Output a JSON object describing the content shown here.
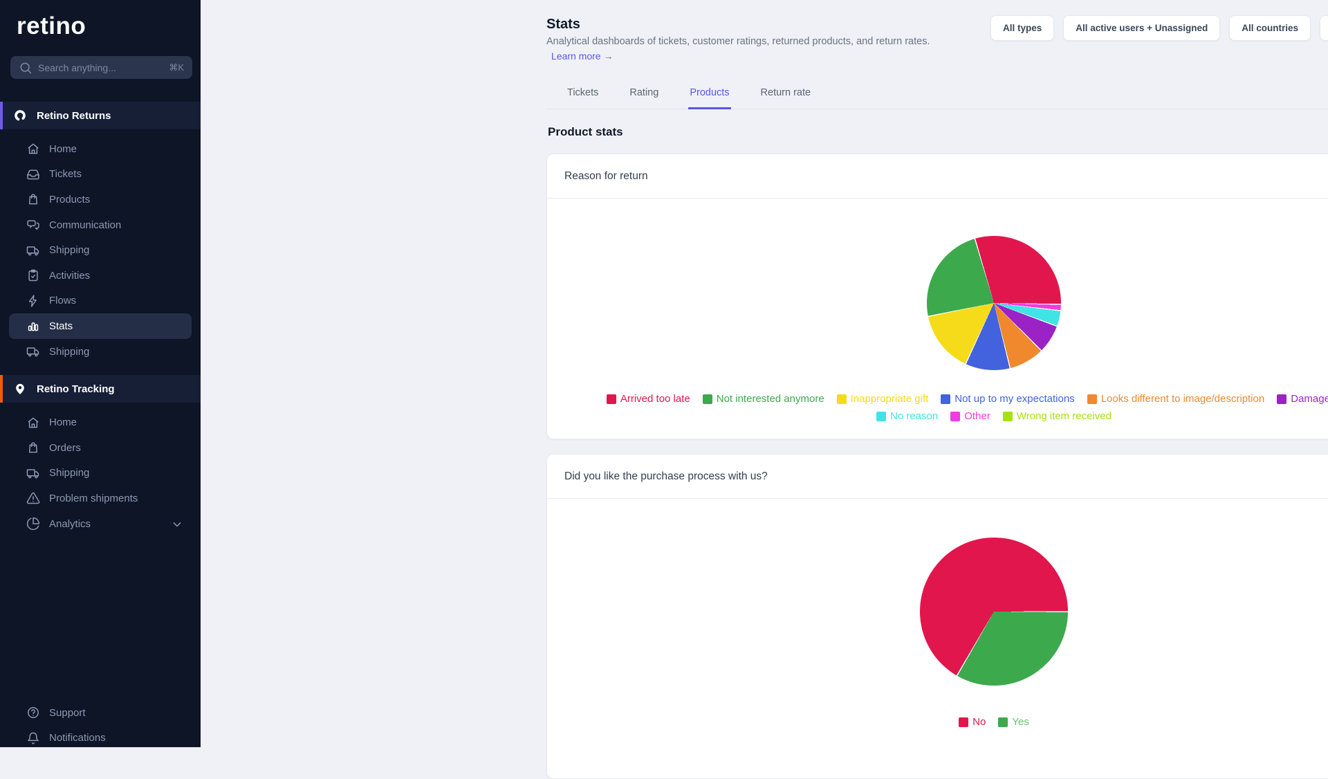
{
  "sidebar": {
    "brand": "retino",
    "search": {
      "placeholder": "Search anything...",
      "shortcut": "⌘K"
    },
    "sections": [
      {
        "label": "Retino Returns",
        "accent_color": "#6E5BE8",
        "icon": "retino-returns-logo-icon",
        "items": [
          {
            "label": "Home",
            "icon": "home-icon"
          },
          {
            "label": "Tickets",
            "icon": "inbox-icon"
          },
          {
            "label": "Products",
            "icon": "shopping-bag-icon"
          },
          {
            "label": "Communication",
            "icon": "chat-bubbles-icon"
          },
          {
            "label": "Shipping",
            "icon": "truck-icon"
          },
          {
            "label": "Activities",
            "icon": "clipboard-check-icon"
          },
          {
            "label": "Flows",
            "icon": "lightning-icon"
          },
          {
            "label": "Stats",
            "icon": "bar-chart-icon",
            "active": true
          },
          {
            "label": "Shipping",
            "icon": "truck-icon"
          }
        ]
      },
      {
        "label": "Retino Tracking",
        "accent_color": "#F25B0C",
        "icon": "map-pin-icon",
        "items": [
          {
            "label": "Home",
            "icon": "home-icon"
          },
          {
            "label": "Orders",
            "icon": "shopping-bag-icon"
          },
          {
            "label": "Shipping",
            "icon": "truck-icon"
          },
          {
            "label": "Problem shipments",
            "icon": "alert-triangle-icon"
          },
          {
            "label": "Analytics",
            "icon": "pie-chart-icon",
            "chevron": true
          }
        ]
      }
    ],
    "footer_items": [
      {
        "label": "Support",
        "icon": "help-circle-icon"
      },
      {
        "label": "Notifications",
        "icon": "bell-icon"
      }
    ]
  },
  "header": {
    "title": "Stats",
    "description": "Analytical dashboards of tickets, customer ratings, returned products, and return rates.",
    "learn_more": "Learn more →"
  },
  "filters": [
    "All types",
    "All active users + Unassigned",
    "All countries",
    ""
  ],
  "tabs": [
    {
      "label": "Tickets",
      "active": false
    },
    {
      "label": "Rating",
      "active": false
    },
    {
      "label": "Products",
      "active": true
    },
    {
      "label": "Return rate",
      "active": false
    }
  ],
  "section_title": "Product stats",
  "chart_data": [
    {
      "type": "pie",
      "title": "Reason for return",
      "legend_position": "bottom",
      "items": [
        {
          "label": "Arrived too late",
          "value_pct": 29.9,
          "color": "#E1164D"
        },
        {
          "label": "Not interested anymore",
          "value_pct": 23.6,
          "color": "#3CA94D"
        },
        {
          "label": "Inappropriate gift",
          "value_pct": 14.9,
          "color": "#F6DB1A"
        },
        {
          "label": "Not up to my expectations",
          "value_pct": 10.8,
          "color": "#4262DE"
        },
        {
          "label": "Looks different to image/description",
          "value_pct": 8.6,
          "color": "#F0882D"
        },
        {
          "label": "Damaged on arrival",
          "value_pct": 6.9,
          "color": "#9B23C6"
        },
        {
          "label": "No reason",
          "value_pct": 3.8,
          "color": "#41E4E4"
        },
        {
          "label": "Other",
          "value_pct": 1.5,
          "color": "#F03CE0"
        },
        {
          "label": "Wrong item received",
          "value_pct": 0,
          "color": "#A6E113"
        }
      ],
      "render": {
        "start_deg": -16.5,
        "clockwise_indices": [
          0,
          7,
          6,
          5,
          4,
          3,
          2,
          1,
          8
        ]
      }
    },
    {
      "type": "pie",
      "title": "Did you like the purchase process with us?",
      "legend_position": "bottom",
      "items": [
        {
          "label": "No",
          "value_pct": 66.7,
          "color": "#E1164D"
        },
        {
          "label": "Yes",
          "value_pct": 33.3,
          "color": "#3CA94D",
          "text_color": "#64C375"
        }
      ],
      "render": {
        "start_deg": 210,
        "clockwise_indices": [
          0,
          1
        ]
      }
    }
  ]
}
